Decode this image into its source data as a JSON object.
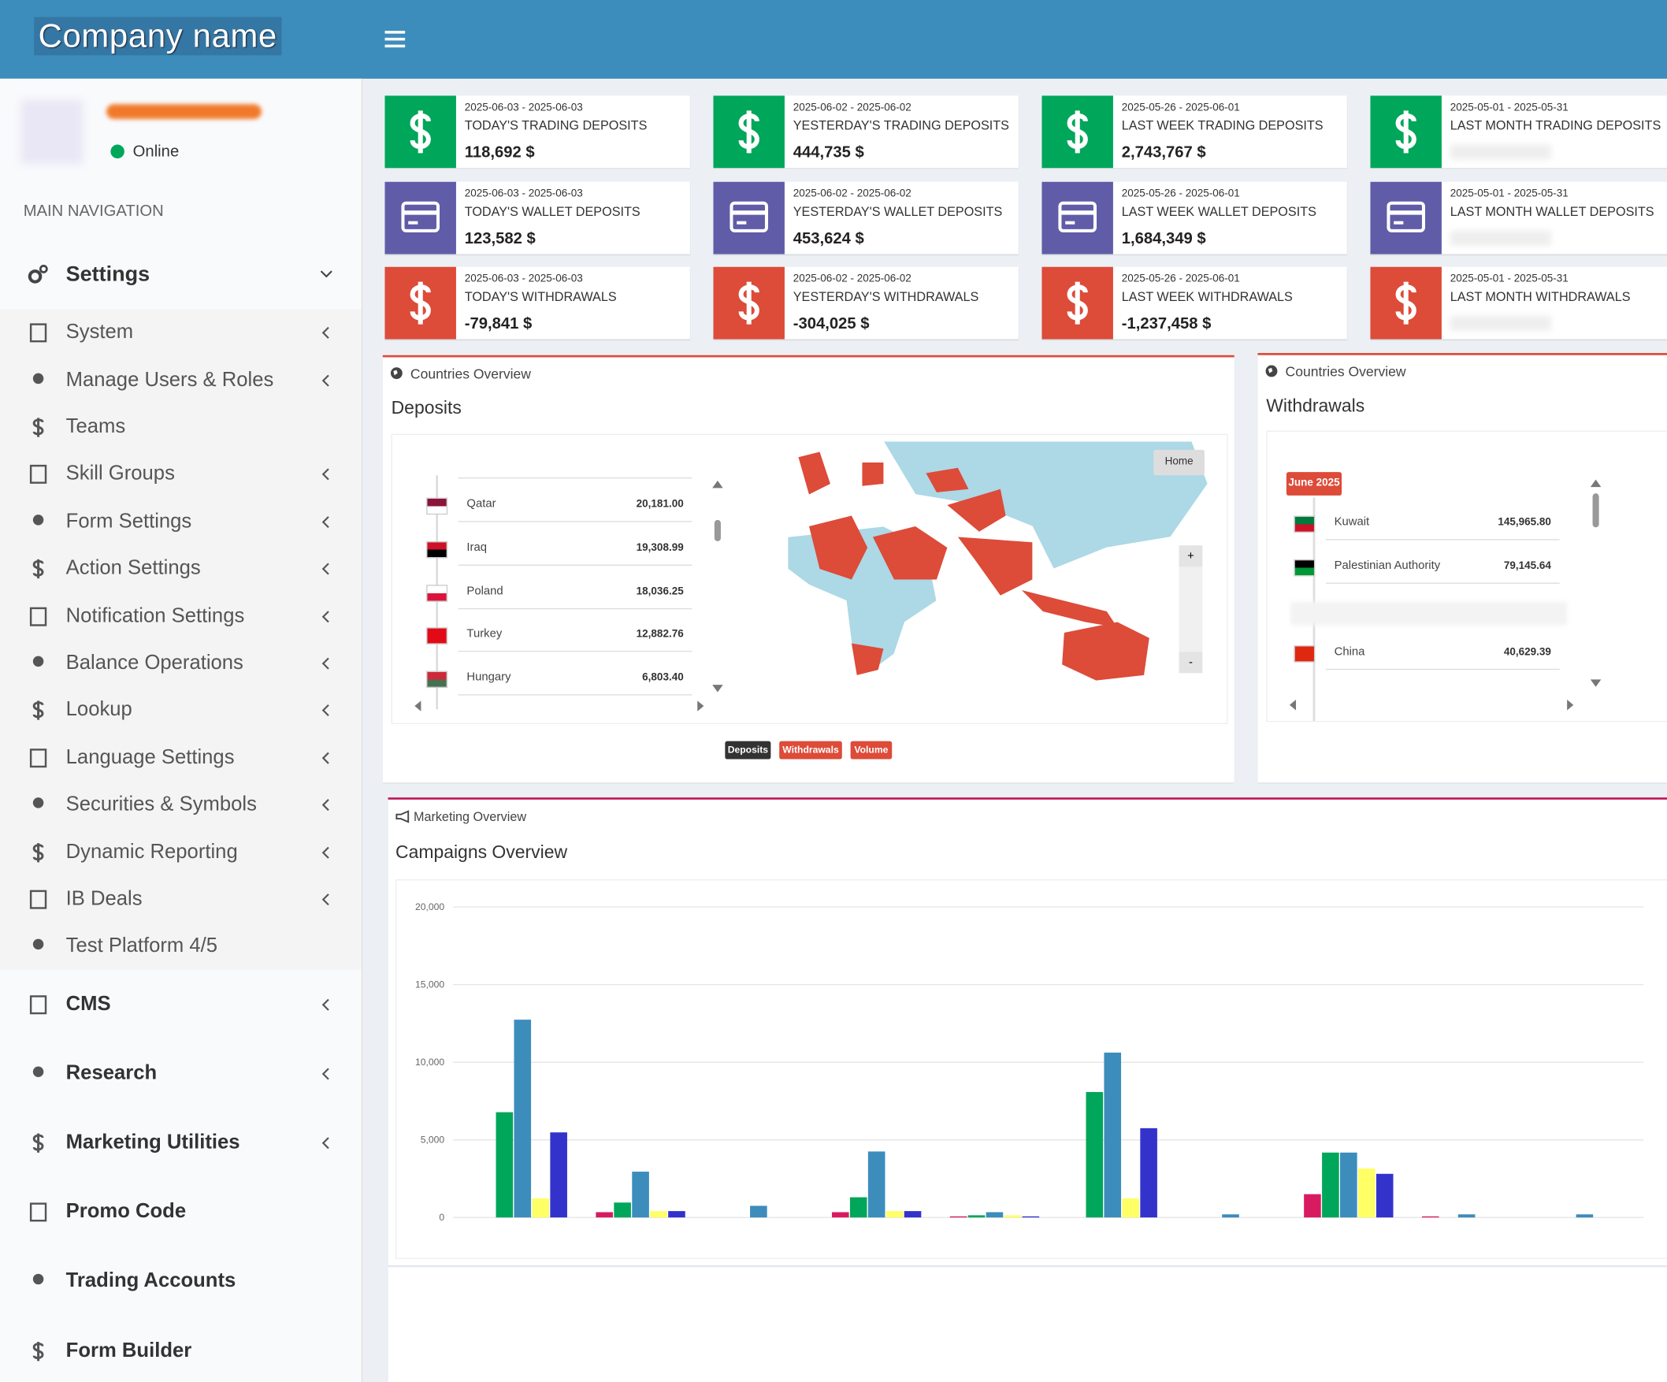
{
  "header": {
    "brand": "Company name"
  },
  "user": {
    "status": "Online"
  },
  "navigation": {
    "heading": "MAIN NAVIGATION",
    "items": [
      {
        "label": "Settings",
        "children": [
          {
            "label": "System"
          },
          {
            "label": "Manage Users & Roles"
          },
          {
            "label": "Teams"
          },
          {
            "label": "Skill Groups"
          },
          {
            "label": "Form Settings"
          },
          {
            "label": "Action Settings"
          },
          {
            "label": "Notification Settings"
          },
          {
            "label": "Balance Operations"
          },
          {
            "label": "Lookup"
          },
          {
            "label": "Language Settings"
          },
          {
            "label": "Securities & Symbols"
          },
          {
            "label": "Dynamic Reporting"
          },
          {
            "label": "IB Deals"
          },
          {
            "label": "Test Platform 4/5"
          }
        ]
      },
      {
        "label": "CMS"
      },
      {
        "label": "Research"
      },
      {
        "label": "Marketing Utilities"
      },
      {
        "label": "Promo Code"
      },
      {
        "label": "Trading Accounts"
      },
      {
        "label": "Form Builder"
      }
    ]
  },
  "stat_rows": [
    {
      "color": "#00a65a",
      "cards": [
        {
          "date_range": "2025-06-03 - 2025-06-03",
          "title": "TODAY'S TRADING DEPOSITS",
          "value": "118,692 $"
        },
        {
          "date_range": "2025-06-02 - 2025-06-02",
          "title": "YESTERDAY'S TRADING DEPOSITS",
          "value": "444,735 $"
        },
        {
          "date_range": "2025-05-26 - 2025-06-01",
          "title": "LAST WEEK TRADING DEPOSITS",
          "value": "2,743,767 $"
        },
        {
          "date_range": "2025-05-01 - 2025-05-31",
          "title": "LAST MONTH TRADING DEPOSITS"
        }
      ]
    },
    {
      "color": "#605ca8",
      "cards": [
        {
          "date_range": "2025-06-03 - 2025-06-03",
          "title": "TODAY'S WALLET DEPOSITS",
          "value": "123,582 $"
        },
        {
          "date_range": "2025-06-02 - 2025-06-02",
          "title": "YESTERDAY'S WALLET DEPOSITS",
          "value": "453,624 $"
        },
        {
          "date_range": "2025-05-26 - 2025-06-01",
          "title": "LAST WEEK WALLET DEPOSITS",
          "value": "1,684,349 $"
        },
        {
          "date_range": "2025-05-01 - 2025-05-31",
          "title": "LAST MONTH WALLET DEPOSITS"
        }
      ]
    },
    {
      "color": "#dd4b39",
      "cards": [
        {
          "date_range": "2025-06-03 - 2025-06-03",
          "title": "TODAY'S WITHDRAWALS",
          "value": "-79,841 $"
        },
        {
          "date_range": "2025-06-02 - 2025-06-02",
          "title": "YESTERDAY'S WITHDRAWALS",
          "value": "-304,025 $"
        },
        {
          "date_range": "2025-05-26 - 2025-06-01",
          "title": "LAST WEEK WITHDRAWALS",
          "value": "-1,237,458 $"
        },
        {
          "date_range": "2025-05-01 - 2025-05-31",
          "title": "LAST MONTH WITHDRAWALS"
        }
      ]
    }
  ],
  "deposits_panel": {
    "header": "Countries Overview",
    "title": "Deposits",
    "rows": [
      {
        "country": "Qatar",
        "amount": "20,181.00"
      },
      {
        "country": "Iraq",
        "amount": "19,308.99"
      },
      {
        "country": "Poland",
        "amount": "18,036.25"
      },
      {
        "country": "Turkey",
        "amount": "12,882.76"
      },
      {
        "country": "Hungary",
        "amount": "6,803.40"
      }
    ],
    "map_home": "Home",
    "zoom_in": "+",
    "zoom_out": "-",
    "buttons": [
      "Deposits",
      "Withdrawals",
      "Volume"
    ]
  },
  "withdrawals_panel": {
    "header": "Countries Overview",
    "title": "Withdrawals",
    "badge": "June 2025",
    "rows": [
      {
        "country": "Kuwait",
        "amount": "145,965.80"
      },
      {
        "country": "Palestinian Authority",
        "amount": "79,145.64"
      },
      {
        "country": "China",
        "amount": "40,629.39"
      }
    ]
  },
  "marketing_panel": {
    "header": "Marketing Overview"
  },
  "chart_data": {
    "type": "bar",
    "title": "Campaigns Overview",
    "categories": [
      null,
      null,
      null,
      null,
      null,
      null,
      null,
      null,
      null,
      null
    ],
    "series": [
      {
        "color": "#d81b60",
        "values": [
          0,
          340,
          0,
          340,
          70,
          0,
          0,
          1500,
          70,
          0
        ]
      },
      {
        "color": "#00a65a",
        "values": [
          6780,
          960,
          0,
          1300,
          140,
          8080,
          0,
          4180,
          0,
          0
        ]
      },
      {
        "color": "#3c8dbc",
        "values": [
          12740,
          2950,
          750,
          4250,
          340,
          10620,
          200,
          4180,
          200,
          200
        ]
      },
      {
        "color": "#ffff66",
        "values": [
          1230,
          410,
          0,
          410,
          140,
          1230,
          0,
          3150,
          0,
          0
        ]
      },
      {
        "color": "#3333cc",
        "values": [
          5480,
          410,
          0,
          410,
          70,
          5750,
          0,
          2810,
          0,
          0
        ]
      }
    ],
    "ylim": [
      0,
      20000
    ],
    "yticks": [
      0,
      {
        "value": 5000,
        "label": "5,000"
      },
      {
        "value": 10000,
        "label": "10,000"
      },
      {
        "value": 15000,
        "label": "15,000"
      },
      {
        "value": 20000,
        "label": "20,000"
      }
    ],
    "grid": true
  }
}
